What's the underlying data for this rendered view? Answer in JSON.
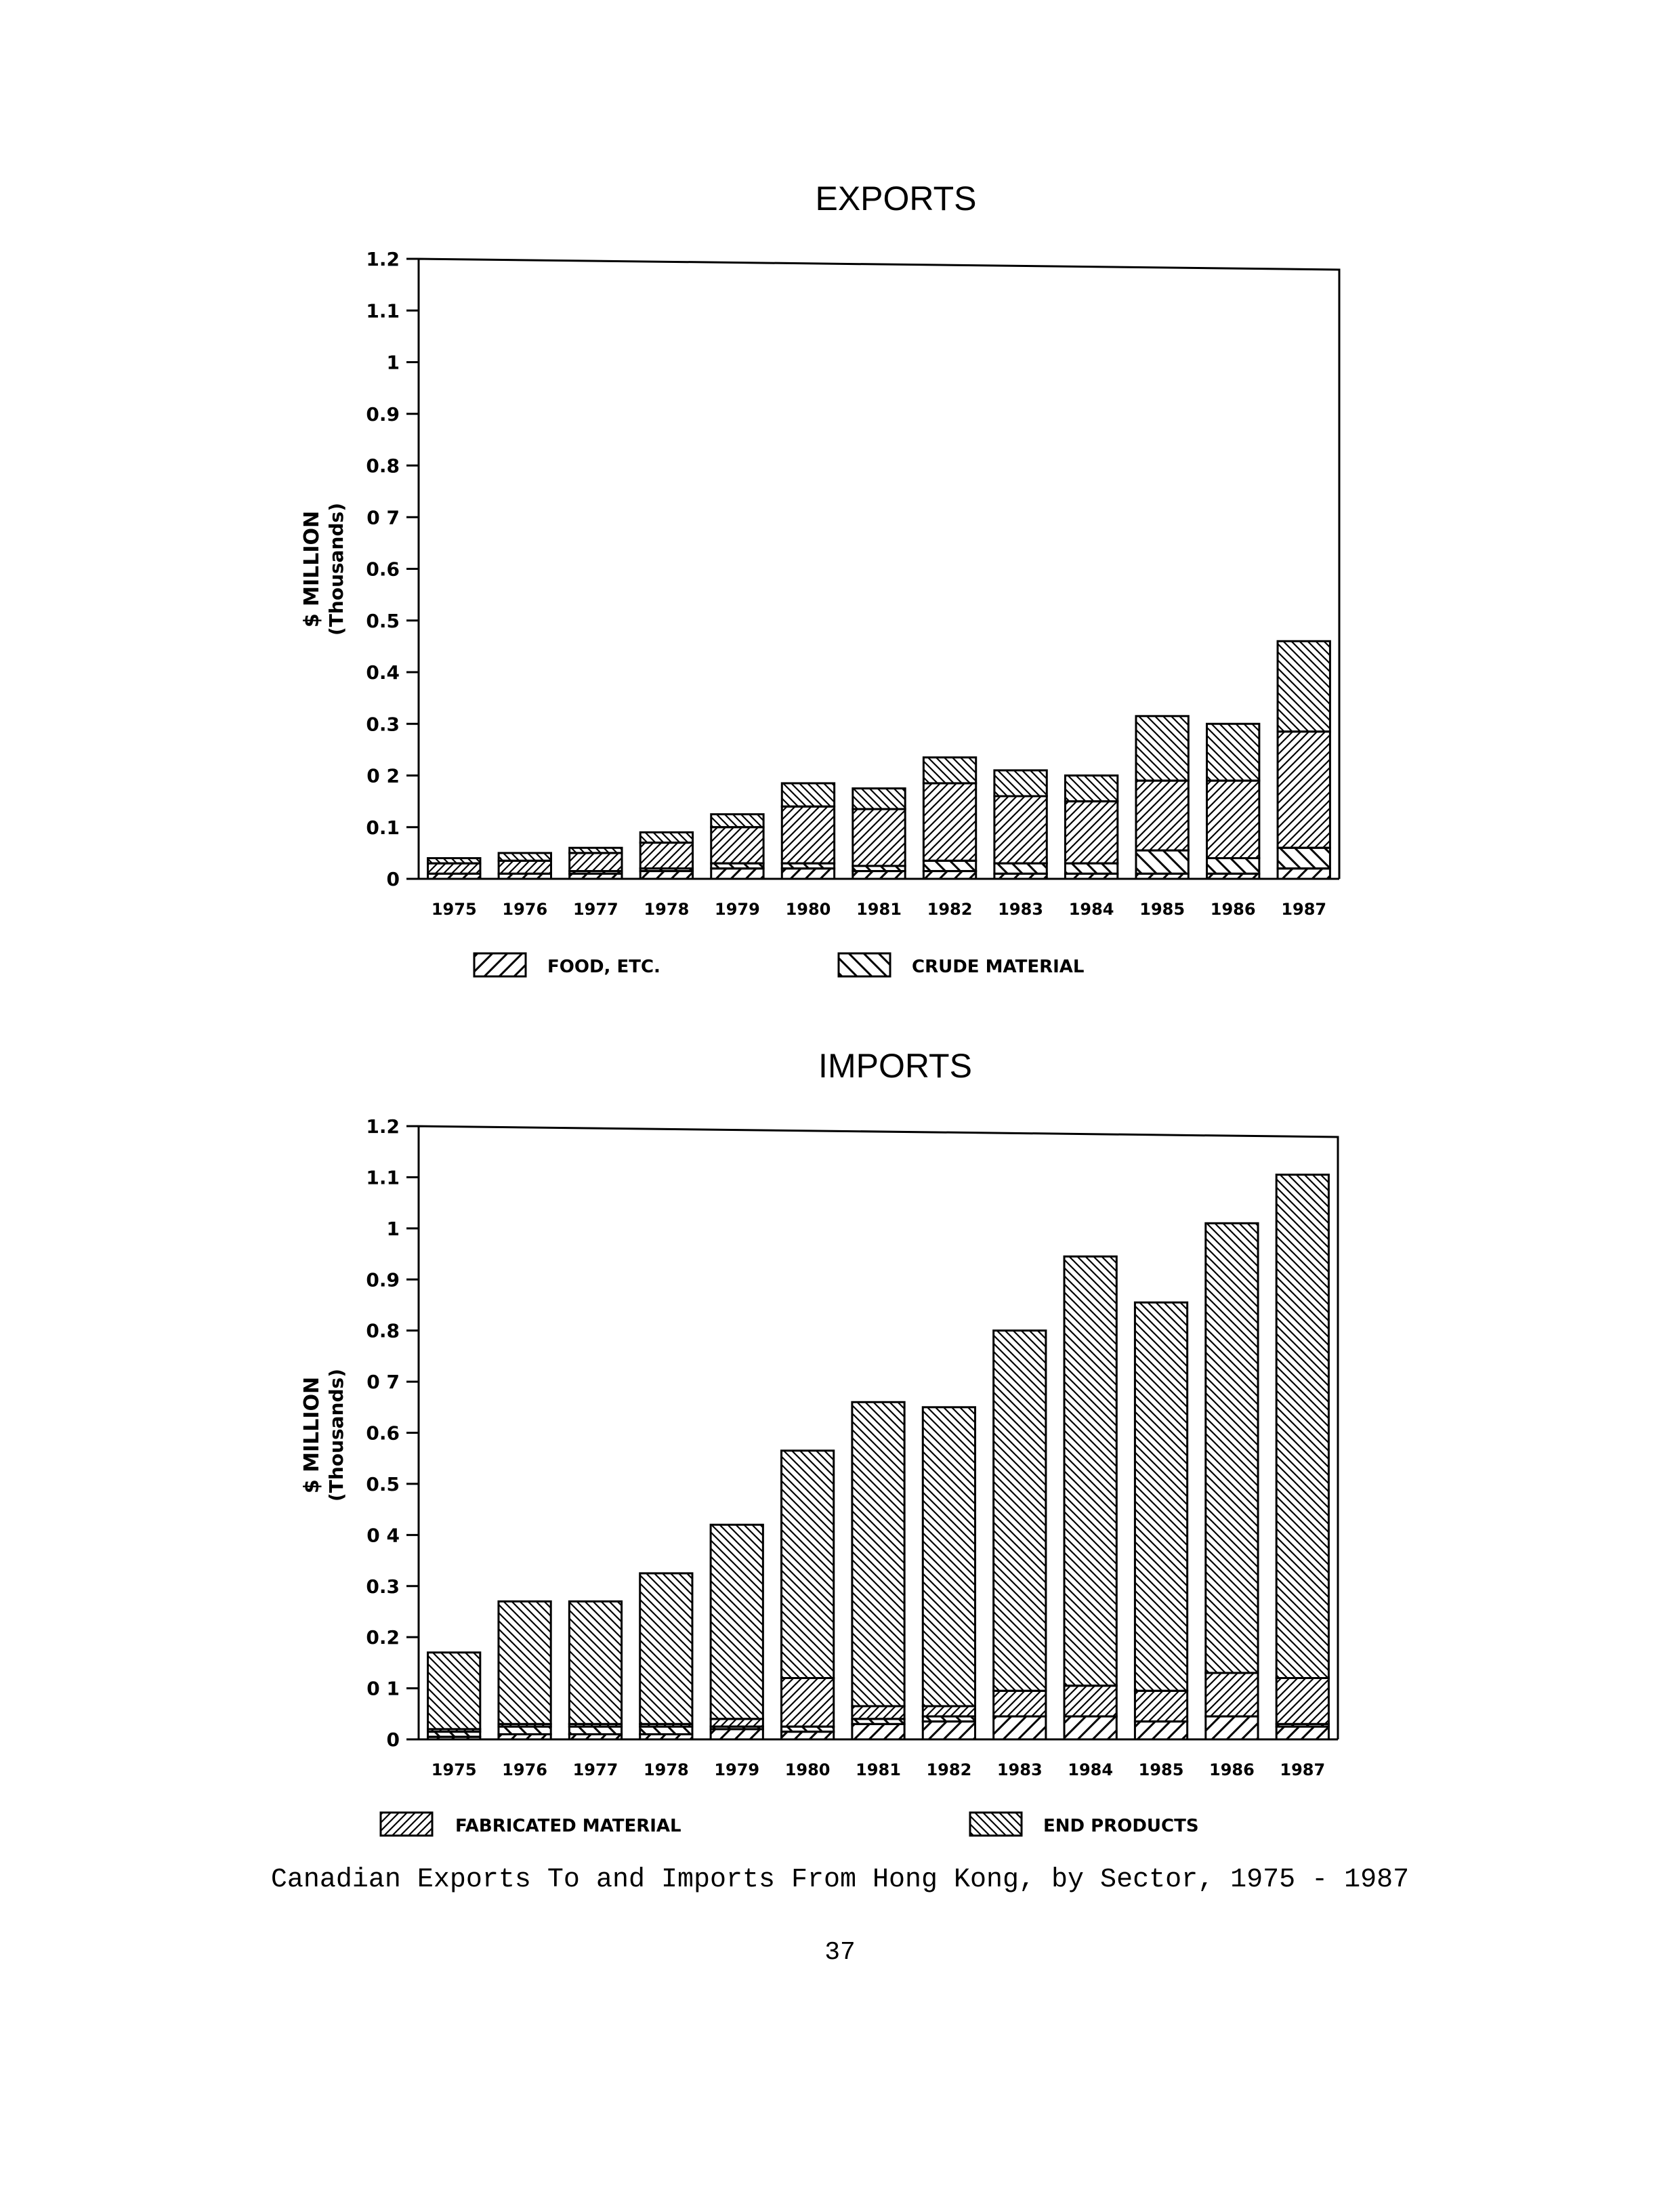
{
  "chart_data": [
    {
      "type": "bar",
      "stacked": true,
      "title": "EXPORTS",
      "ylabel": "$ MILLION",
      "ylabel_sub": "(Thousands)",
      "ylim": [
        0,
        1.2
      ],
      "yticks": [
        "1.2",
        "1.1",
        "1",
        "0.9",
        "0.8",
        "0 7",
        "0.6",
        "0.5",
        "0.4",
        "0.3",
        "0 2",
        "0.1",
        "0"
      ],
      "categories": [
        "1975",
        "1976",
        "1977",
        "1978",
        "1979",
        "1980",
        "1981",
        "1982",
        "1983",
        "1984",
        "1985",
        "1986",
        "1987"
      ],
      "series": [
        {
          "name": "FOOD, ETC.",
          "pattern": "forward-diagonal",
          "values": [
            0.01,
            0.01,
            0.01,
            0.015,
            0.02,
            0.02,
            0.015,
            0.015,
            0.01,
            0.01,
            0.01,
            0.01,
            0.02
          ]
        },
        {
          "name": "CRUDE MATERIAL",
          "pattern": "back-diagonal",
          "values": [
            0.0,
            0.0,
            0.005,
            0.005,
            0.01,
            0.01,
            0.01,
            0.02,
            0.02,
            0.02,
            0.045,
            0.03,
            0.04
          ]
        },
        {
          "pattern": "forward-diagonal-dense",
          "values": [
            0.02,
            0.025,
            0.035,
            0.05,
            0.07,
            0.11,
            0.11,
            0.15,
            0.13,
            0.12,
            0.135,
            0.15,
            0.225
          ]
        },
        {
          "pattern": "back-diagonal-dense",
          "values": [
            0.01,
            0.015,
            0.01,
            0.02,
            0.025,
            0.045,
            0.04,
            0.05,
            0.05,
            0.05,
            0.125,
            0.11,
            0.175
          ]
        }
      ],
      "totals": [
        0.04,
        0.05,
        0.06,
        0.09,
        0.125,
        0.185,
        0.175,
        0.235,
        0.21,
        0.2,
        0.315,
        0.3,
        0.46
      ],
      "legend_placement": "bottom"
    },
    {
      "type": "bar",
      "stacked": true,
      "title": "IMPORTS",
      "ylabel": "$ MILLION",
      "ylabel_sub": "(Thousands)",
      "ylim": [
        0,
        1.2
      ],
      "yticks": [
        "1.2",
        "1.1",
        "1",
        "0.9",
        "0.8",
        "0 7",
        "0.6",
        "0.5",
        "0 4",
        "0.3",
        "0.2",
        "0 1",
        "0"
      ],
      "categories": [
        "1975",
        "1976",
        "1977",
        "1978",
        "1979",
        "1980",
        "1981",
        "1982",
        "1983",
        "1984",
        "1985",
        "1986",
        "1987"
      ],
      "series": [
        {
          "pattern": "forward-diagonal",
          "values": [
            0.005,
            0.01,
            0.01,
            0.01,
            0.02,
            0.015,
            0.03,
            0.035,
            0.045,
            0.045,
            0.035,
            0.045,
            0.025
          ]
        },
        {
          "pattern": "back-diagonal",
          "values": [
            0.01,
            0.015,
            0.015,
            0.015,
            0.005,
            0.01,
            0.01,
            0.01,
            0.0,
            0.0,
            0.0,
            0.0,
            0.005
          ]
        },
        {
          "name": "FABRICATED MATERIAL",
          "pattern": "forward-diagonal-dense",
          "values": [
            0.005,
            0.005,
            0.005,
            0.005,
            0.015,
            0.095,
            0.025,
            0.02,
            0.05,
            0.06,
            0.06,
            0.085,
            0.09
          ]
        },
        {
          "name": "END PRODUCTS",
          "pattern": "back-diagonal-dense",
          "values": [
            0.15,
            0.24,
            0.24,
            0.295,
            0.38,
            0.445,
            0.595,
            0.585,
            0.705,
            0.84,
            0.76,
            0.88,
            0.985
          ]
        }
      ],
      "totals": [
        0.17,
        0.27,
        0.27,
        0.325,
        0.42,
        0.565,
        0.66,
        0.65,
        0.8,
        0.945,
        0.855,
        1.01,
        1.105
      ],
      "legend_placement": "bottom"
    }
  ],
  "caption": "Canadian Exports To and Imports From Hong Kong, by Sector, 1975 - 1987",
  "page_number": "37"
}
